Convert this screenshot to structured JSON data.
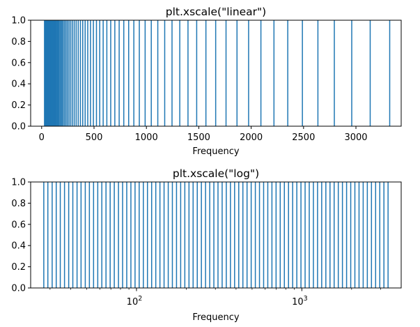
{
  "palette": {
    "line": "#1f77b4",
    "axis": "#000000"
  },
  "chart_data": [
    {
      "type": "vlines",
      "title": "plt.xscale(\"linear\")",
      "xlabel": "Frequency",
      "ylabel": "",
      "xscale": "linear",
      "xlim": [
        -105,
        3432
      ],
      "ylim": [
        0,
        1
      ],
      "grid": false,
      "x": [
        27.5,
        29.1,
        30.9,
        32.7,
        34.6,
        36.7,
        38.9,
        41.2,
        43.7,
        46.2,
        49.0,
        51.9,
        55.0,
        58.3,
        61.7,
        65.4,
        69.3,
        73.4,
        77.8,
        82.4,
        87.3,
        92.5,
        98.0,
        103.8,
        110.0,
        116.5,
        123.5,
        130.8,
        138.6,
        146.8,
        155.6,
        164.8,
        174.6,
        185.0,
        196.0,
        207.7,
        220.0,
        233.1,
        246.9,
        261.6,
        277.2,
        293.7,
        311.1,
        329.6,
        349.2,
        370.0,
        392.0,
        415.3,
        440.0,
        466.2,
        493.9,
        523.3,
        554.4,
        587.3,
        622.3,
        659.3,
        698.5,
        740.0,
        784.0,
        830.6,
        880.0,
        932.3,
        987.8,
        1046.5,
        1108.7,
        1174.7,
        1244.5,
        1318.5,
        1396.9,
        1480.0,
        1568.0,
        1661.2,
        1760.0,
        1864.7,
        1975.5,
        2093.0,
        2217.5,
        2349.3,
        2489.0,
        2637.0,
        2793.8,
        2960.0,
        3136.0,
        3322.4
      ],
      "y_bottom": 0,
      "y_top": 1,
      "xticks": [
        {
          "value": 0,
          "label": "0"
        },
        {
          "value": 500,
          "label": "500"
        },
        {
          "value": 1000,
          "label": "1000"
        },
        {
          "value": 1500,
          "label": "1500"
        },
        {
          "value": 2000,
          "label": "2000"
        },
        {
          "value": 2500,
          "label": "2500"
        },
        {
          "value": 3000,
          "label": "3000"
        }
      ],
      "yticks": [
        {
          "value": 0,
          "label": "0.0"
        },
        {
          "value": 0.2,
          "label": "0.2"
        },
        {
          "value": 0.4,
          "label": "0.4"
        },
        {
          "value": 0.6,
          "label": "0.6"
        },
        {
          "value": 0.8,
          "label": "0.8"
        },
        {
          "value": 1,
          "label": "1.0"
        }
      ]
    },
    {
      "type": "vlines",
      "title": "plt.xscale(\"log\")",
      "xlabel": "Frequency",
      "ylabel": "",
      "xscale": "log",
      "xlim": [
        22.9,
        3989
      ],
      "ylim": [
        0,
        1
      ],
      "grid": false,
      "x": [
        27.5,
        29.1,
        30.9,
        32.7,
        34.6,
        36.7,
        38.9,
        41.2,
        43.7,
        46.2,
        49.0,
        51.9,
        55.0,
        58.3,
        61.7,
        65.4,
        69.3,
        73.4,
        77.8,
        82.4,
        87.3,
        92.5,
        98.0,
        103.8,
        110.0,
        116.5,
        123.5,
        130.8,
        138.6,
        146.8,
        155.6,
        164.8,
        174.6,
        185.0,
        196.0,
        207.7,
        220.0,
        233.1,
        246.9,
        261.6,
        277.2,
        293.7,
        311.1,
        329.6,
        349.2,
        370.0,
        392.0,
        415.3,
        440.0,
        466.2,
        493.9,
        523.3,
        554.4,
        587.3,
        622.3,
        659.3,
        698.5,
        740.0,
        784.0,
        830.6,
        880.0,
        932.3,
        987.8,
        1046.5,
        1108.7,
        1174.7,
        1244.5,
        1318.5,
        1396.9,
        1480.0,
        1568.0,
        1661.2,
        1760.0,
        1864.7,
        1975.5,
        2093.0,
        2217.5,
        2349.3,
        2489.0,
        2637.0,
        2793.8,
        2960.0,
        3136.0,
        3322.4
      ],
      "y_bottom": 0,
      "y_top": 1,
      "xticks_major": [
        {
          "value": 100,
          "base": "10",
          "exp": "2"
        },
        {
          "value": 1000,
          "base": "10",
          "exp": "3"
        }
      ],
      "xticks_minor": [
        30,
        40,
        50,
        60,
        70,
        80,
        90,
        200,
        300,
        400,
        500,
        600,
        700,
        800,
        900,
        2000,
        3000
      ],
      "yticks": [
        {
          "value": 0,
          "label": "0.0"
        },
        {
          "value": 0.2,
          "label": "0.2"
        },
        {
          "value": 0.4,
          "label": "0.4"
        },
        {
          "value": 0.6,
          "label": "0.6"
        },
        {
          "value": 0.8,
          "label": "0.8"
        },
        {
          "value": 1,
          "label": "1.0"
        }
      ]
    }
  ]
}
